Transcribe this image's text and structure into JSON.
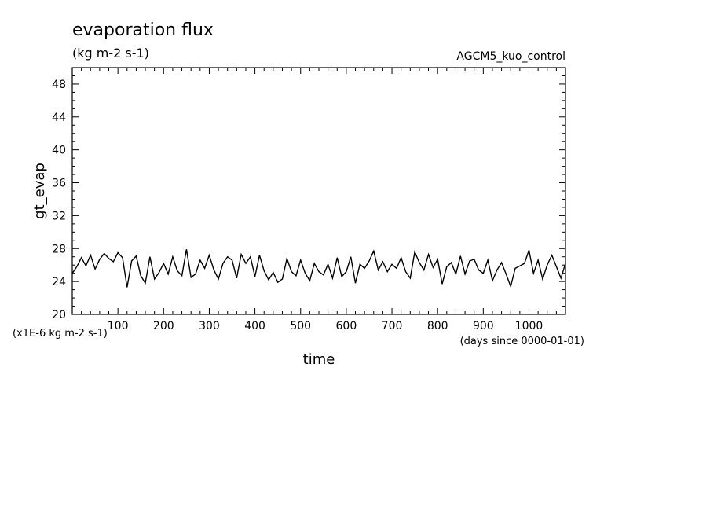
{
  "chart_data": {
    "type": "line",
    "title": "evaporation flux",
    "subtitle": "(kg m-2 s-1)",
    "run_label": "AGCM5_kuo_control",
    "ylabel": "gt_evap",
    "xlabel": "time",
    "y_unit_note": "(x1E-6 kg m-2 s-1)",
    "x_unit_note": "(days since 0000-01-01)",
    "xlim": [
      0,
      1080
    ],
    "ylim": [
      20,
      50
    ],
    "x_ticks": [
      100,
      200,
      300,
      400,
      500,
      600,
      700,
      800,
      900,
      1000
    ],
    "x_tick_labels": [
      "100",
      "200",
      "300",
      "400",
      "500",
      "600",
      "700",
      "800",
      "900",
      "1000"
    ],
    "y_ticks": [
      20,
      24,
      28,
      32,
      36,
      40,
      44,
      48
    ],
    "y_tick_labels": [
      "20",
      "24",
      "28",
      "32",
      "36",
      "40",
      "44",
      "48"
    ],
    "grid": false,
    "color": "#000000",
    "series": [
      {
        "x": [
          0,
          10,
          20,
          30,
          40,
          50,
          60,
          70,
          80,
          90,
          100,
          110,
          120,
          130,
          140,
          150,
          160,
          170,
          180,
          190,
          200,
          210,
          220,
          230,
          240,
          250,
          260,
          270,
          280,
          290,
          300,
          310,
          320,
          330,
          340,
          350,
          360,
          370,
          380,
          390,
          400,
          410,
          420,
          430,
          440,
          450,
          460,
          470,
          480,
          490,
          500,
          510,
          520,
          530,
          540,
          550,
          560,
          570,
          580,
          590,
          600,
          610,
          620,
          630,
          640,
          650,
          660,
          670,
          680,
          690,
          700,
          710,
          720,
          730,
          740,
          750,
          760,
          770,
          780,
          790,
          800,
          810,
          820,
          830,
          840,
          850,
          860,
          870,
          880,
          890,
          900,
          910,
          920,
          930,
          940,
          950,
          960,
          970,
          980,
          990,
          1000,
          1010,
          1020,
          1030,
          1040,
          1050,
          1060,
          1070,
          1080
        ],
        "values": [
          25.0,
          25.8,
          26.9,
          25.9,
          27.2,
          25.5,
          26.7,
          27.4,
          26.8,
          26.4,
          27.5,
          26.9,
          23.3,
          26.5,
          27.1,
          24.7,
          23.8,
          27.0,
          24.3,
          25.1,
          26.2,
          24.9,
          27.0,
          25.3,
          24.7,
          27.9,
          24.5,
          24.9,
          26.6,
          25.6,
          27.2,
          25.4,
          24.3,
          26.2,
          27.0,
          26.6,
          24.4,
          27.3,
          26.2,
          27.0,
          24.6,
          27.2,
          25.3,
          24.2,
          25.1,
          23.9,
          24.3,
          26.8,
          25.2,
          24.7,
          26.6,
          25.0,
          24.1,
          26.2,
          25.2,
          24.8,
          26.1,
          24.4,
          26.9,
          24.6,
          25.2,
          27.0,
          23.8,
          26.1,
          25.6,
          26.5,
          27.7,
          25.4,
          26.4,
          25.2,
          26.1,
          25.6,
          26.9,
          25.2,
          24.4,
          27.6,
          26.3,
          25.4,
          27.3,
          25.7,
          26.7,
          23.7,
          25.8,
          26.3,
          24.9,
          27.1,
          24.9,
          26.5,
          26.7,
          25.4,
          25.0,
          26.6,
          24.1,
          25.4,
          26.3,
          24.9,
          23.4,
          25.6,
          25.9,
          26.2,
          27.8,
          25.0,
          26.6,
          24.3,
          26.0,
          27.2,
          25.8,
          24.4,
          26.2
        ]
      }
    ]
  }
}
